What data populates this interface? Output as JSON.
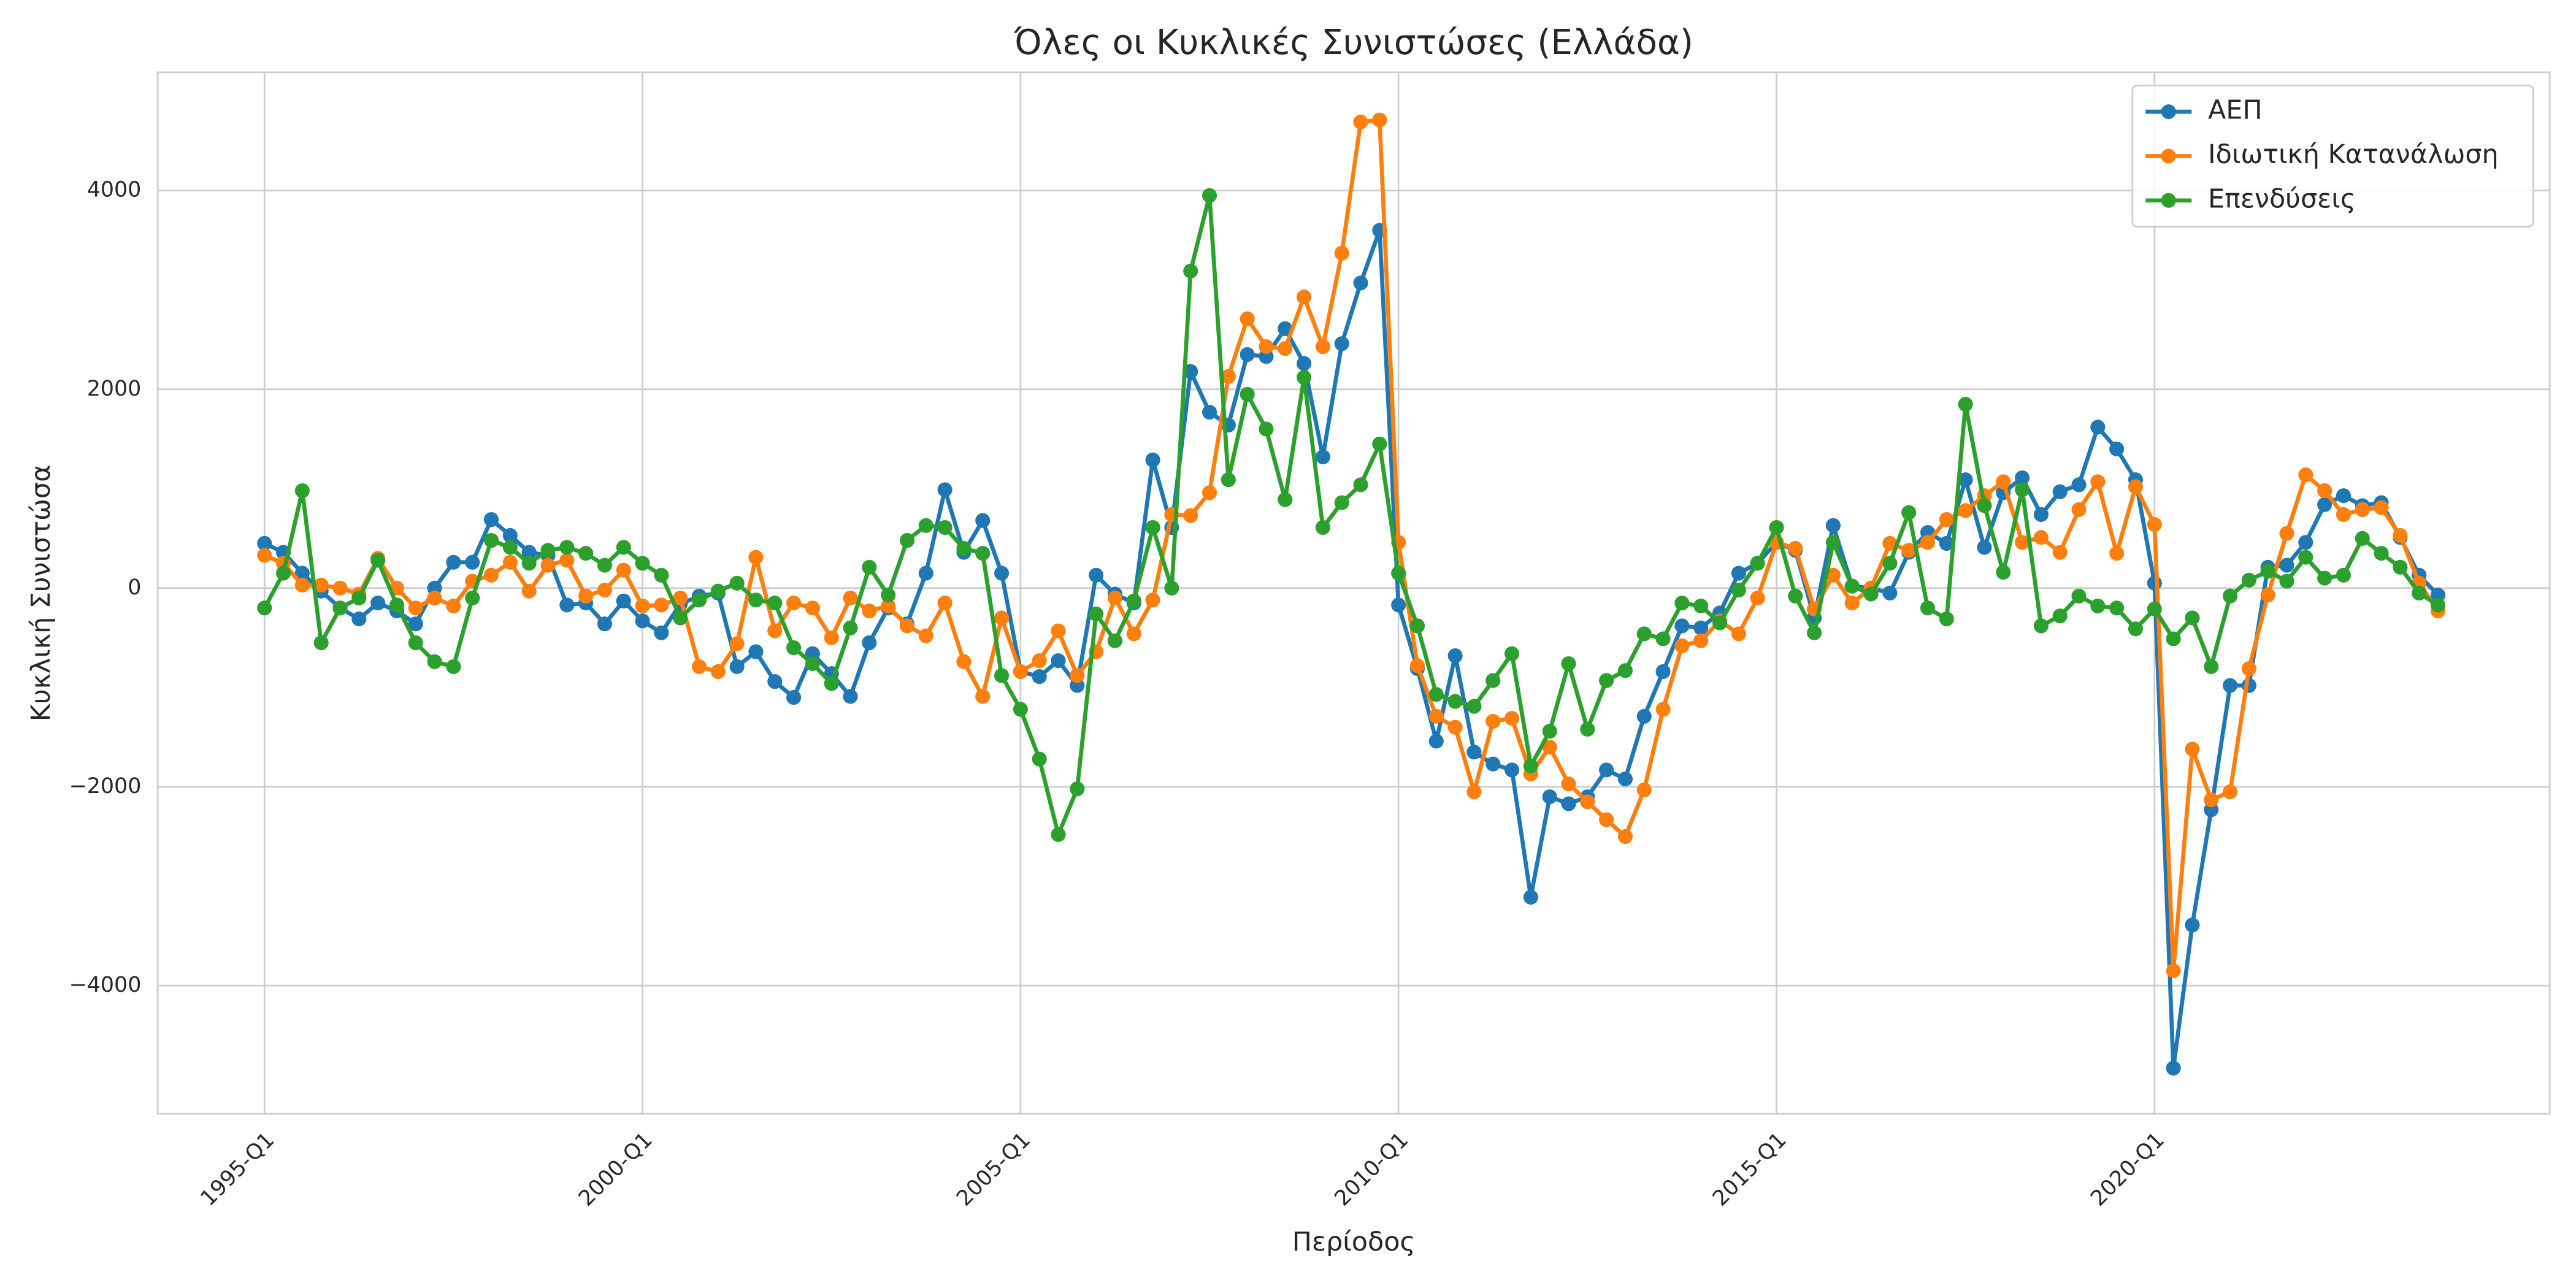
{
  "chart_data": {
    "type": "line",
    "title": "Όλες οι Κυκλικές Συνιστώσες (Ελλάδα)",
    "x_label": "Περίοδος",
    "y_label": "Κυκλική Συνιστώσα",
    "categories": [
      "1995-Q1",
      null,
      null,
      null,
      null,
      null,
      null,
      null,
      null,
      null,
      null,
      null,
      null,
      null,
      null,
      null,
      null,
      null,
      null,
      null,
      "2000-Q1",
      null,
      null,
      null,
      null,
      null,
      null,
      null,
      null,
      null,
      null,
      null,
      null,
      null,
      null,
      null,
      null,
      null,
      null,
      null,
      "2005-Q1",
      null,
      null,
      null,
      null,
      null,
      null,
      null,
      null,
      null,
      null,
      null,
      null,
      null,
      null,
      null,
      null,
      null,
      null,
      null,
      "2010-Q1",
      null,
      null,
      null,
      null,
      null,
      null,
      null,
      null,
      null,
      null,
      null,
      null,
      null,
      null,
      null,
      null,
      null,
      null,
      null,
      "2015-Q1",
      null,
      null,
      null,
      null,
      null,
      null,
      null,
      null,
      null,
      null,
      null,
      null,
      null,
      null,
      null,
      null,
      null,
      null,
      null,
      "2020-Q1",
      null,
      null,
      null,
      null,
      null,
      null,
      null,
      null,
      null,
      null,
      null,
      null,
      null,
      null,
      null
    ],
    "series": [
      {
        "name": "ΑΕΠ",
        "color": "#1f77b4",
        "values": [
          450,
          360,
          150,
          -30,
          -200,
          -310,
          -150,
          -230,
          -360,
          0,
          260,
          260,
          690,
          530,
          360,
          330,
          -170,
          -150,
          -360,
          -130,
          -330,
          -450,
          -160,
          -80,
          -50,
          -790,
          -640,
          -940,
          -1100,
          -660,
          -860,
          -1090,
          -550,
          -200,
          -360,
          150,
          990,
          360,
          680,
          150,
          -840,
          -890,
          -730,
          -980,
          130,
          -60,
          -150,
          1290,
          610,
          2180,
          1770,
          1640,
          2350,
          2330,
          2610,
          2260,
          1320,
          2460,
          3070,
          3600,
          -170,
          -810,
          -1540,
          -680,
          -1650,
          -1770,
          -1830,
          -3110,
          -2100,
          -2170,
          -2100,
          -1830,
          -1920,
          -1290,
          -840,
          -380,
          -400,
          -250,
          150,
          250,
          460,
          380,
          -300,
          630,
          20,
          0,
          -50,
          360,
          560,
          450,
          1090,
          410,
          960,
          1110,
          740,
          970,
          1040,
          1620,
          1400,
          1090,
          50,
          -4830,
          -3390,
          -2230,
          -980,
          -980,
          210,
          230,
          460,
          840,
          930,
          830,
          860,
          510,
          130,
          -70
        ]
      },
      {
        "name": "Ιδιωτική Κατανάλωση",
        "color": "#ff7f0e",
        "values": [
          330,
          250,
          30,
          30,
          0,
          -60,
          300,
          0,
          -200,
          -100,
          -180,
          70,
          130,
          260,
          -30,
          230,
          280,
          -80,
          -20,
          180,
          -180,
          -170,
          -100,
          -790,
          -840,
          -560,
          310,
          -430,
          -150,
          -200,
          -500,
          -100,
          -230,
          -180,
          -380,
          -480,
          -150,
          -740,
          -1090,
          -300,
          -840,
          -730,
          -430,
          -880,
          -640,
          -100,
          -460,
          -120,
          740,
          730,
          960,
          2130,
          2710,
          2430,
          2410,
          2930,
          2430,
          3370,
          4690,
          4710,
          460,
          -780,
          -1290,
          -1400,
          -2050,
          -1340,
          -1310,
          -1870,
          -1600,
          -1970,
          -2150,
          -2330,
          -2500,
          -2030,
          -1220,
          -580,
          -530,
          -330,
          -460,
          -100,
          460,
          400,
          -210,
          130,
          -150,
          0,
          450,
          380,
          460,
          690,
          780,
          930,
          1070,
          460,
          510,
          360,
          790,
          1070,
          350,
          1020,
          640,
          -3850,
          -1620,
          -2130,
          -2050,
          -810,
          -70,
          550,
          1140,
          980,
          740,
          790,
          810,
          530,
          50,
          -230
        ]
      },
      {
        "name": "Επενδύσεις",
        "color": "#2ca02c",
        "values": [
          -200,
          150,
          980,
          -550,
          -200,
          -100,
          280,
          -170,
          -550,
          -740,
          -790,
          -100,
          480,
          410,
          250,
          380,
          410,
          350,
          230,
          410,
          250,
          130,
          -300,
          -120,
          -30,
          50,
          -120,
          -150,
          -600,
          -760,
          -960,
          -400,
          210,
          -70,
          480,
          630,
          610,
          400,
          350,
          -880,
          -1220,
          -1720,
          -2480,
          -2020,
          -260,
          -530,
          -130,
          610,
          0,
          3190,
          3950,
          1090,
          1950,
          1600,
          890,
          2120,
          610,
          860,
          1040,
          1450,
          150,
          -380,
          -1070,
          -1140,
          -1190,
          -930,
          -660,
          -1790,
          -1440,
          -760,
          -1420,
          -930,
          -830,
          -460,
          -510,
          -150,
          -180,
          -350,
          -20,
          250,
          610,
          -80,
          -450,
          460,
          20,
          -60,
          250,
          760,
          -200,
          -310,
          1850,
          830,
          160,
          990,
          -380,
          -280,
          -80,
          -180,
          -200,
          -410,
          -210,
          -510,
          -300,
          -790,
          -80,
          80,
          170,
          70,
          310,
          100,
          130,
          500,
          350,
          210,
          -50,
          -170
        ]
      }
    ],
    "ylim": [
      -5290,
      5190
    ],
    "yticks": [
      {
        "value": -4000,
        "label": "−4000"
      },
      {
        "value": -2000,
        "label": "−2000"
      },
      0,
      2000,
      4000
    ],
    "grid": true,
    "legend": "upper right"
  }
}
